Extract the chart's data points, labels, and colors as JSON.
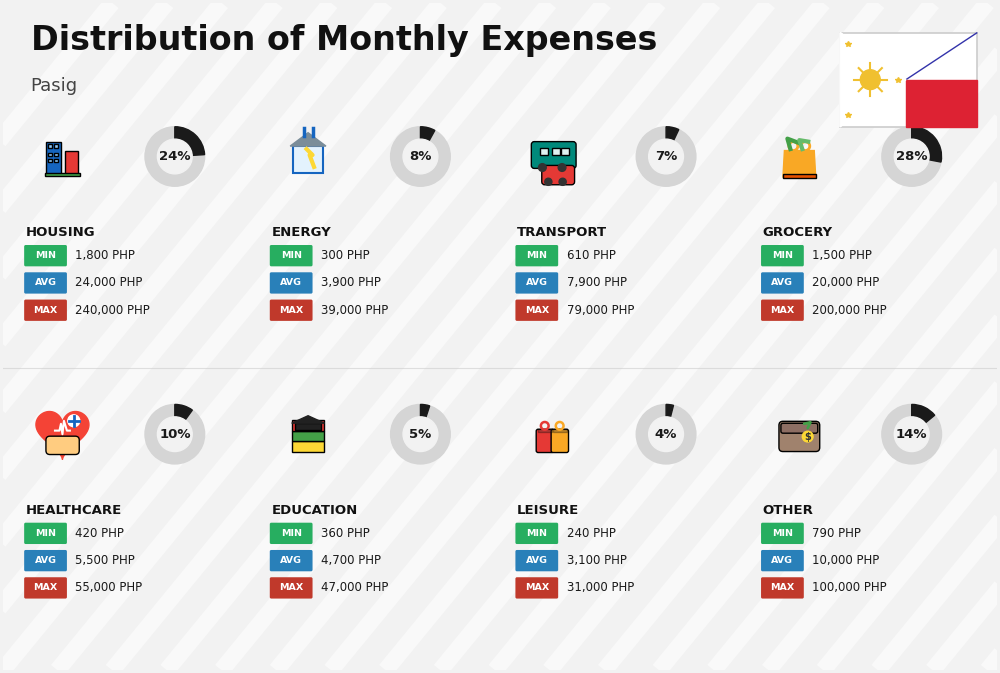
{
  "title": "Distribution of Monthly Expenses",
  "subtitle": "Pasig",
  "background_color": "#f2f2f2",
  "categories": [
    {
      "name": "HOUSING",
      "percent": 24,
      "min": "1,800 PHP",
      "avg": "24,000 PHP",
      "max": "240,000 PHP",
      "row": 0,
      "col": 0
    },
    {
      "name": "ENERGY",
      "percent": 8,
      "min": "300 PHP",
      "avg": "3,900 PHP",
      "max": "39,000 PHP",
      "row": 0,
      "col": 1
    },
    {
      "name": "TRANSPORT",
      "percent": 7,
      "min": "610 PHP",
      "avg": "7,900 PHP",
      "max": "79,000 PHP",
      "row": 0,
      "col": 2
    },
    {
      "name": "GROCERY",
      "percent": 28,
      "min": "1,500 PHP",
      "avg": "20,000 PHP",
      "max": "200,000 PHP",
      "row": 0,
      "col": 3
    },
    {
      "name": "HEALTHCARE",
      "percent": 10,
      "min": "420 PHP",
      "avg": "5,500 PHP",
      "max": "55,000 PHP",
      "row": 1,
      "col": 0
    },
    {
      "name": "EDUCATION",
      "percent": 5,
      "min": "360 PHP",
      "avg": "4,700 PHP",
      "max": "47,000 PHP",
      "row": 1,
      "col": 1
    },
    {
      "name": "LEISURE",
      "percent": 4,
      "min": "240 PHP",
      "avg": "3,100 PHP",
      "max": "31,000 PHP",
      "row": 1,
      "col": 2
    },
    {
      "name": "OTHER",
      "percent": 14,
      "min": "790 PHP",
      "avg": "10,000 PHP",
      "max": "100,000 PHP",
      "row": 1,
      "col": 3
    }
  ],
  "min_color": "#27ae60",
  "avg_color": "#2980b9",
  "max_color": "#c0392b",
  "label_text_color": "#ffffff",
  "value_text_color": "#1a1a1a",
  "donut_bg_color": "#d5d5d5",
  "donut_fg_color": "#1a1a1a",
  "category_name_color": "#111111",
  "title_color": "#111111",
  "subtitle_color": "#444444",
  "flag_blue": "#3333aa",
  "flag_red": "#dd2233",
  "flag_sun": "#f0c030",
  "stripe_color": "#ffffff",
  "stripe_alpha": 0.55
}
